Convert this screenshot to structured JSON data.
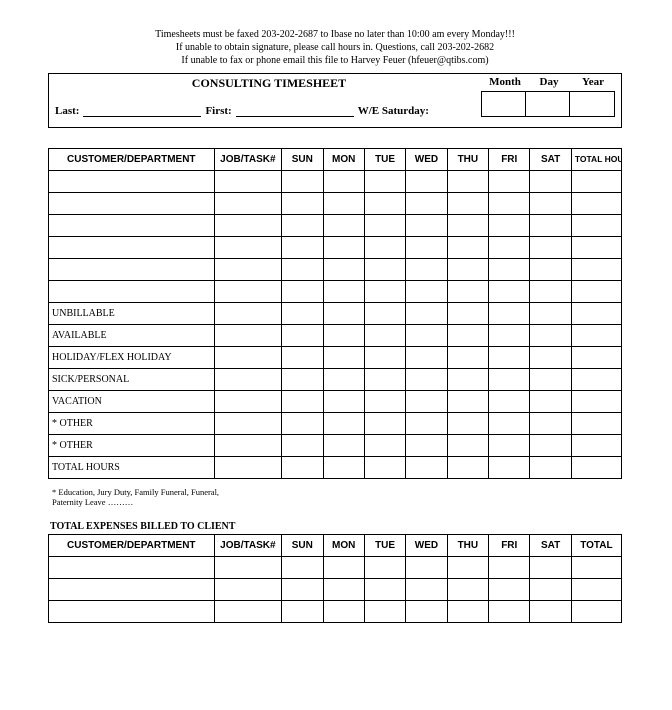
{
  "instructions": {
    "line1": "Timesheets must be faxed 203-202-2687 to Ibase no later than 10:00 am every Monday!!!",
    "line2": "If unable to obtain signature, please call hours in.  Questions, call 203-202-2682",
    "line3": "If unable to fax or phone email this file to Harvey Feuer (hfeuer@qtibs.com)"
  },
  "header": {
    "title": "CONSULTING TIMESHEET",
    "last_label": "Last:",
    "first_label": "First:",
    "we_label": "W/E Saturday:",
    "month": "Month",
    "day": "Day",
    "year": "Year"
  },
  "columns": {
    "cust": "CUSTOMER/DEPARTMENT",
    "job": "JOB/TASK#",
    "sun": "SUN",
    "mon": "MON",
    "tue": "TUE",
    "wed": "WED",
    "thu": "THU",
    "fri": "FRI",
    "sat": "SAT",
    "total_hours": "TOTAL HOURS",
    "total": "TOTAL"
  },
  "row_labels": {
    "unbillable": "UNBILLABLE",
    "available": "AVAILABLE",
    "holiday": "HOLIDAY/FLEX HOLIDAY",
    "sick": "SICK/PERSONAL",
    "vacation": "VACATION",
    "other1": "* OTHER",
    "other2": "* OTHER",
    "total_hours": "TOTAL HOURS"
  },
  "footnote": {
    "line1": "* Education, Jury Duty, Family Funeral, Funeral,",
    "line2": "Paternity Leave ………"
  },
  "expenses": {
    "title": "TOTAL EXPENSES BILLED TO CLIENT"
  },
  "layout": {
    "blank_rows_main": 6,
    "expense_rows": 3
  }
}
